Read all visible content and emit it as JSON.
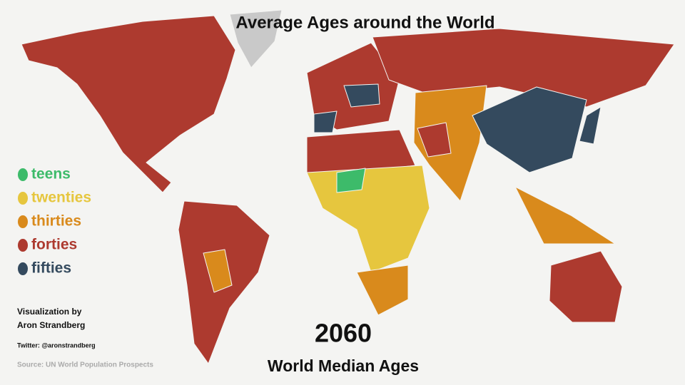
{
  "title": "Average Ages around the World",
  "legend": [
    {
      "label": "teens",
      "color": "#3dbb6a"
    },
    {
      "label": "twenties",
      "color": "#e6c63e"
    },
    {
      "label": "thirties",
      "color": "#d98a1c"
    },
    {
      "label": "forties",
      "color": "#ad3a2f"
    },
    {
      "label": "fifties",
      "color": "#344a5e"
    }
  ],
  "credit": {
    "line1": "Visualization by",
    "line2": "Aron Strandberg",
    "twitter": "Twitter: @aronstrandberg",
    "source": "Source: UN World Population Prospects"
  },
  "year": "2060",
  "subtitle": "World Median Ages"
}
